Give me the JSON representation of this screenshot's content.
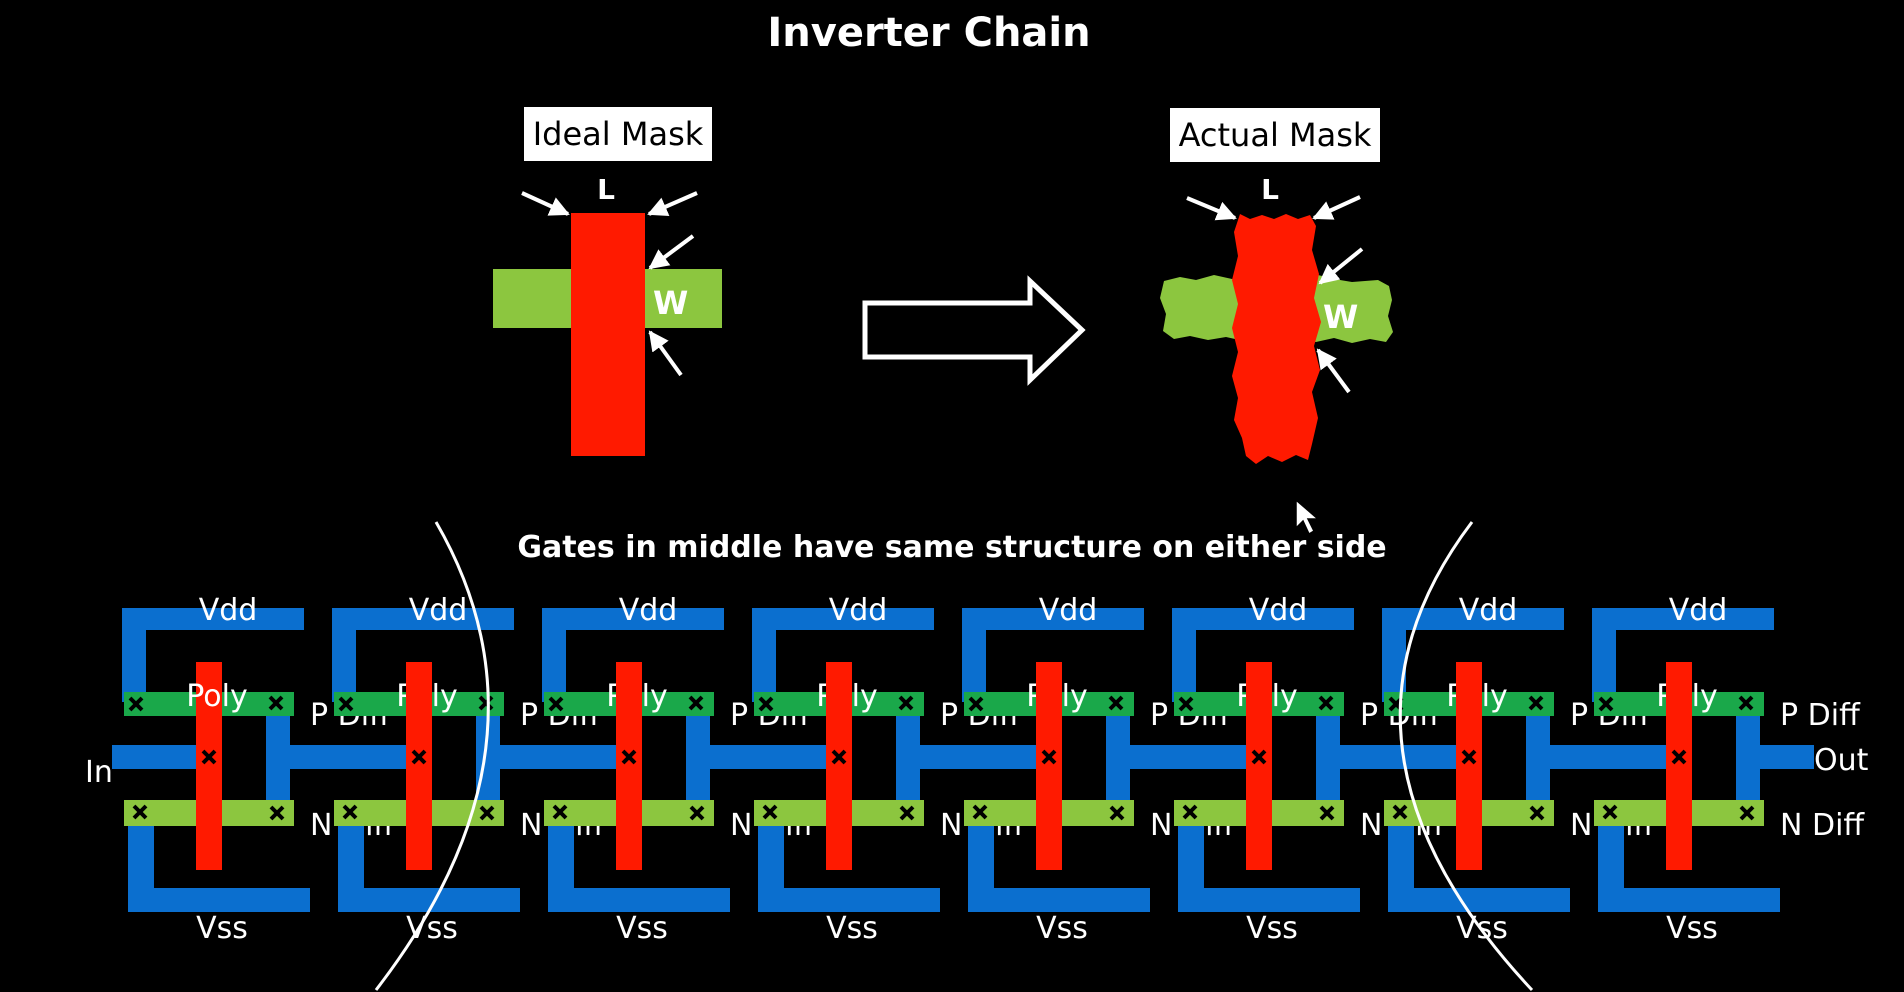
{
  "title": "Inverter Chain",
  "ideal_mask": {
    "label": "Ideal Mask",
    "length_label": "L",
    "width_label": "W"
  },
  "actual_mask": {
    "label": "Actual Mask",
    "length_label": "L",
    "width_label": "W"
  },
  "chain": {
    "note": "Gates in middle have same structure on either side",
    "cells": [
      {
        "vdd": "Vdd",
        "vss": "Vss",
        "poly": "Poly",
        "pdiff": "P Diff",
        "ndiff": "N Diff"
      },
      {
        "vdd": "Vdd",
        "vss": "Vss",
        "poly": "Poly",
        "pdiff": "P Diff",
        "ndiff": "N Diff"
      },
      {
        "vdd": "Vdd",
        "vss": "Vss",
        "poly": "Poly",
        "pdiff": "P Diff",
        "ndiff": "N Diff"
      },
      {
        "vdd": "Vdd",
        "vss": "Vss",
        "poly": "Poly",
        "pdiff": "P Diff",
        "ndiff": "N Diff"
      },
      {
        "vdd": "Vdd",
        "vss": "Vss",
        "poly": "Poly",
        "pdiff": "P Diff",
        "ndiff": "N Diff"
      },
      {
        "vdd": "Vdd",
        "vss": "Vss",
        "poly": "Poly",
        "pdiff": "P Diff",
        "ndiff": "N Diff"
      },
      {
        "vdd": "Vdd",
        "vss": "Vss",
        "poly": "Poly",
        "pdiff": "P Diff",
        "ndiff": "N Diff"
      },
      {
        "vdd": "Vdd",
        "vss": "Vss",
        "poly": "Poly",
        "pdiff": "P Diff",
        "ndiff": "N Diff"
      }
    ],
    "input_label": "In",
    "output_label": "Out"
  },
  "colors": {
    "background": "#000000",
    "poly": "#ff1a00",
    "metal": "#0b6fcf",
    "p_diffusion": "#1aa84a",
    "n_diffusion": "#8cc63f",
    "diffusion_mask": "#8cc63f",
    "contact": "#000000",
    "text": "#ffffff"
  },
  "icons": {
    "transform_arrow": "right-arrow-outline-icon",
    "pointer": "arrow-pointer-icon",
    "contact": "cross-contact-icon"
  }
}
